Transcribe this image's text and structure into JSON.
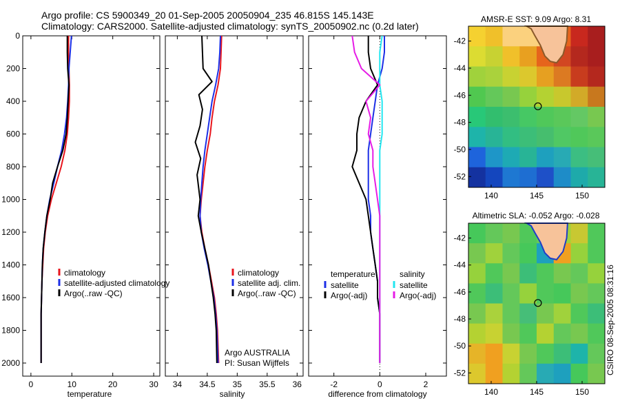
{
  "header": {
    "line1": "Argo profile: CS 5900349_20 01-Sep-2005 20050904_235 46.815S 145.143E",
    "line2": "Climatology: CARS2000. Satellite-adjusted climatology: synTS_20050902.nc (0.2d later)"
  },
  "credits": {
    "line1": "Argo AUSTRALIA",
    "line2": "PI: Susan Wijffels",
    "stamp": "CSIRO 08-Sep-2005 08:31:16"
  },
  "colors": {
    "climatology": "#e8141c",
    "satellite": "#1c2ee6",
    "argo": "#000000",
    "satellite_diff": "#22e6f0",
    "argo_sal_diff": "#e61ce6"
  },
  "chart_data": [
    {
      "id": "temperature",
      "type": "line",
      "xlabel": "temperature",
      "ylabel": "",
      "xlim": [
        -2,
        31.5
      ],
      "ylim": [
        2080,
        0
      ],
      "xticks": [
        "0",
        "10",
        "20",
        "30"
      ],
      "xtick_values": [
        0,
        10,
        20,
        30
      ],
      "yticks": [
        "0",
        "200",
        "400",
        "600",
        "800",
        "1000",
        "1200",
        "1400",
        "1600",
        "1800",
        "2000"
      ],
      "ytick_values": [
        0,
        200,
        400,
        600,
        800,
        1000,
        1200,
        1400,
        1600,
        1800,
        2000
      ],
      "legend": {
        "position": "lower-right",
        "items": [
          {
            "label": "climatology",
            "color_key": "climatology"
          },
          {
            "label": "satellite-adjusted climatology",
            "color_key": "satellite"
          },
          {
            "label": "Argo(..raw -QC)",
            "color_key": "argo"
          }
        ]
      },
      "series": [
        {
          "name": "climatology",
          "color_key": "climatology",
          "x": [
            9.2,
            9.2,
            9.3,
            9.4,
            9.4,
            9.2,
            8.9,
            8.3,
            7.4,
            6.2,
            5.0,
            4.1,
            3.5,
            3.1,
            2.9,
            2.7,
            2.6,
            2.5,
            2.5,
            2.5
          ],
          "y": [
            0,
            100,
            200,
            300,
            400,
            500,
            600,
            700,
            800,
            900,
            1000,
            1100,
            1200,
            1300,
            1400,
            1500,
            1600,
            1700,
            1800,
            2000
          ]
        },
        {
          "name": "satellite-adjusted climatology",
          "color_key": "satellite",
          "x": [
            9.9,
            9.6,
            9.3,
            9.2,
            9.0,
            8.7,
            8.2,
            7.5,
            6.5,
            5.6,
            4.6,
            3.9,
            3.4,
            3.0,
            2.8,
            2.7,
            2.6,
            2.5,
            2.5,
            2.5
          ],
          "y": [
            0,
            100,
            200,
            300,
            400,
            500,
            600,
            700,
            800,
            900,
            1000,
            1100,
            1200,
            1300,
            1400,
            1500,
            1600,
            1700,
            1800,
            2000
          ]
        },
        {
          "name": "Argo(..raw -QC)",
          "color_key": "argo",
          "x": [
            8.9,
            8.9,
            9.0,
            9.3,
            9.1,
            8.9,
            8.6,
            7.8,
            6.5,
            5.3,
            4.7,
            3.9,
            3.4,
            3.0,
            2.8,
            2.7,
            2.6,
            2.5,
            2.5,
            2.5
          ],
          "y": [
            0,
            100,
            200,
            300,
            400,
            500,
            600,
            700,
            800,
            900,
            1000,
            1100,
            1200,
            1300,
            1400,
            1500,
            1600,
            1700,
            1800,
            2000
          ]
        }
      ]
    },
    {
      "id": "salinity",
      "type": "line",
      "xlabel": "salinity",
      "ylabel": "",
      "xlim": [
        33.8,
        36.1
      ],
      "ylim": [
        2080,
        0
      ],
      "xticks": [
        "34",
        "34.5",
        "35",
        "35.5",
        "36"
      ],
      "xtick_values": [
        34,
        34.5,
        35,
        35.5,
        36
      ],
      "legend": {
        "position": "lower-right",
        "items": [
          {
            "label": "climatology",
            "color_key": "climatology"
          },
          {
            "label": "satellite adj. clim.",
            "color_key": "satellite"
          },
          {
            "label": "Argo(..raw -QC)",
            "color_key": "argo"
          }
        ]
      },
      "series": [
        {
          "name": "climatology",
          "color_key": "climatology",
          "x": [
            34.74,
            34.73,
            34.72,
            34.68,
            34.62,
            34.58,
            34.55,
            34.5,
            34.46,
            34.43,
            34.4,
            34.38,
            34.41,
            34.46,
            34.52,
            34.57,
            34.62,
            34.65,
            34.67,
            34.69
          ],
          "y": [
            0,
            100,
            200,
            300,
            400,
            500,
            600,
            700,
            800,
            900,
            1000,
            1100,
            1200,
            1300,
            1400,
            1500,
            1600,
            1700,
            1800,
            2000
          ]
        },
        {
          "name": "satellite adj. clim.",
          "color_key": "satellite",
          "x": [
            34.72,
            34.71,
            34.69,
            34.64,
            34.58,
            34.54,
            34.5,
            34.46,
            34.43,
            34.41,
            34.39,
            34.38,
            34.4,
            34.45,
            34.51,
            34.56,
            34.61,
            34.64,
            34.66,
            34.68
          ],
          "y": [
            0,
            100,
            200,
            300,
            400,
            500,
            600,
            700,
            800,
            900,
            1000,
            1100,
            1200,
            1300,
            1400,
            1500,
            1600,
            1700,
            1800,
            2000
          ]
        },
        {
          "name": "Argo(..raw -QC)",
          "color_key": "argo",
          "x": [
            34.41,
            34.42,
            34.43,
            34.58,
            34.36,
            34.42,
            34.38,
            34.3,
            34.39,
            34.33,
            34.38,
            34.35,
            34.4,
            34.46,
            34.52,
            34.56,
            34.6,
            34.63,
            34.65,
            34.66
          ],
          "y": [
            0,
            100,
            200,
            280,
            360,
            450,
            550,
            650,
            750,
            850,
            1000,
            1100,
            1200,
            1300,
            1400,
            1500,
            1600,
            1700,
            1800,
            2000
          ]
        }
      ]
    },
    {
      "id": "difference",
      "type": "line",
      "xlabel": "difference from climatology",
      "ylabel": "",
      "xlim": [
        -3.1,
        2.9
      ],
      "ylim": [
        2080,
        0
      ],
      "xticks": [
        "-2",
        "0",
        "2"
      ],
      "xtick_values": [
        -2,
        0,
        2
      ],
      "legend": {
        "position": "lower-center",
        "groups": [
          {
            "title": "temperature",
            "items": [
              {
                "label": "satellite",
                "color_key": "satellite"
              },
              {
                "label": "Argo(-adj)",
                "color_key": "argo"
              }
            ]
          },
          {
            "title": "salinity",
            "items": [
              {
                "label": "satellite",
                "color_key": "satellite_diff"
              },
              {
                "label": "Argo(-adj)",
                "color_key": "argo_sal_diff"
              }
            ]
          }
        ]
      },
      "series": [
        {
          "name": "temperature satellite",
          "color_key": "satellite",
          "x": [
            0.2,
            0.2,
            0.1,
            -0.1,
            -0.2,
            -0.3,
            -0.4,
            -0.5,
            -0.5,
            -0.5,
            -0.5,
            -0.4,
            -0.4,
            -0.3,
            -0.2,
            -0.1,
            -0.1,
            0.0,
            0.0,
            0.0
          ],
          "y": [
            0,
            100,
            200,
            300,
            400,
            500,
            600,
            700,
            800,
            900,
            1000,
            1100,
            1200,
            1300,
            1400,
            1500,
            1600,
            1700,
            1800,
            2000
          ]
        },
        {
          "name": "temperature Argo(-adj)",
          "color_key": "argo",
          "x": [
            -0.5,
            -0.5,
            -0.4,
            -0.1,
            -0.6,
            -0.9,
            -1.0,
            -1.0,
            -1.2,
            -0.9,
            -0.6,
            -0.5,
            -0.4,
            -0.3,
            -0.2,
            -0.1,
            -0.1,
            0.0,
            0.0,
            0.0
          ],
          "y": [
            0,
            100,
            200,
            300,
            400,
            500,
            600,
            700,
            800,
            900,
            1000,
            1100,
            1200,
            1300,
            1400,
            1500,
            1600,
            1700,
            1800,
            2000
          ]
        },
        {
          "name": "salinity satellite",
          "color_key": "satellite_diff",
          "x": [
            0.1,
            0.0,
            0.0,
            0.0,
            0.1,
            0.1,
            0.1,
            0.0,
            0.0,
            0.0,
            0.0,
            0.0,
            0.0,
            0.0,
            0.0,
            0.0,
            0.0,
            0.0,
            0.0,
            0.0
          ],
          "y": [
            0,
            100,
            200,
            300,
            400,
            500,
            600,
            700,
            800,
            900,
            1000,
            1100,
            1200,
            1300,
            1400,
            1500,
            1600,
            1700,
            1800,
            2000
          ]
        },
        {
          "name": "salinity Argo(-adj)",
          "color_key": "argo_sal_diff",
          "x": [
            -1.2,
            -1.1,
            -0.8,
            0.0,
            -0.6,
            -0.4,
            -0.5,
            -0.3,
            -0.3,
            -0.2,
            -0.1,
            0.0,
            0.0,
            0.0,
            0.0,
            0.0,
            0.0,
            0.0,
            0.0,
            0.0
          ],
          "y": [
            0,
            100,
            200,
            300,
            400,
            500,
            600,
            700,
            800,
            900,
            1000,
            1100,
            1200,
            1300,
            1400,
            1500,
            1600,
            1700,
            1800,
            2000
          ]
        }
      ]
    },
    {
      "id": "sst_map",
      "type": "heatmap",
      "title": "AMSR-E SST: 9.09 Argo: 8.31",
      "xlim": [
        137.5,
        152.5
      ],
      "ylim": [
        -52.8,
        -40.9
      ],
      "xticks": [
        "140",
        "145",
        "150"
      ],
      "xtick_values": [
        140,
        145,
        150
      ],
      "yticks": [
        "-42",
        "-44",
        "-46",
        "-48",
        "-50",
        "-52"
      ],
      "ytick_values": [
        -42,
        -44,
        -46,
        -48,
        -50,
        -52
      ],
      "marker": {
        "lon": 145.143,
        "lat": -46.815
      },
      "rows_north_to_south": [
        "#f5d130",
        "#f0c02a",
        "#fbd17e",
        "#fbd17e",
        "#fbd17e",
        "#e6641c",
        "#c8281e",
        "#a81e1e",
        "#dcdc32",
        "#c8d232",
        "#f0c02a",
        "#e8a020",
        "#e6641c",
        "#d24622",
        "#b4281e",
        "#a81e1e",
        "#a0d23c",
        "#aad23c",
        "#c8d232",
        "#dcc82d",
        "#e6a021",
        "#dc7a22",
        "#c83c1e",
        "#b4281e",
        "#50c850",
        "#64c85a",
        "#78c850",
        "#96d23c",
        "#b4d232",
        "#c8c82d",
        "#d2aa28",
        "#c8781e",
        "#28c878",
        "#32be6e",
        "#3cbe6e",
        "#46c864",
        "#50c85a",
        "#5ac85a",
        "#64c864",
        "#78c850",
        "#1eb4aa",
        "#28b496",
        "#32be82",
        "#3cbe78",
        "#46be6e",
        "#50c864",
        "#50c85a",
        "#5ac85a",
        "#1e64dc",
        "#1e96c8",
        "#1eaab4",
        "#28b496",
        "#1ea0be",
        "#28aab4",
        "#3cbe82",
        "#46be78",
        "#1432a0",
        "#1446be",
        "#1e78d2",
        "#1e6ed2",
        "#1e50c8",
        "#1e8cc8",
        "#1eaaaa",
        "#28b496"
      ]
    },
    {
      "id": "sla_map",
      "type": "heatmap",
      "title": "Altimetric SLA: -0.052 Argo: -0.028",
      "xlim": [
        137.5,
        152.5
      ],
      "ylim": [
        -52.8,
        -40.9
      ],
      "xticks": [
        "140",
        "145",
        "150"
      ],
      "xtick_values": [
        140,
        145,
        150
      ],
      "yticks": [
        "-42",
        "-44",
        "-46",
        "-48",
        "-50",
        "-52"
      ],
      "ytick_values": [
        -42,
        -44,
        -46,
        -48,
        -50,
        -52
      ],
      "marker": {
        "lon": 145.143,
        "lat": -46.815
      },
      "rows_north_to_south": [
        "#46c85a",
        "#64c85a",
        "#78c850",
        "#50c85a",
        "#64c85a",
        "#a0d23c",
        "#c8c832",
        "#50c85a",
        "#78c850",
        "#a0d23c",
        "#64c85a",
        "#46c85a",
        "#1ea0be",
        "#f0a020",
        "#96d23c",
        "#50c85a",
        "#96d23c",
        "#50c85a",
        "#78c850",
        "#3cbe78",
        "#50c85a",
        "#78c850",
        "#64c85a",
        "#96d23c",
        "#50c85a",
        "#3cbe78",
        "#64c85a",
        "#96d23c",
        "#50c85a",
        "#46c85a",
        "#78c850",
        "#64c85a",
        "#78c850",
        "#aad23c",
        "#64c85a",
        "#46be78",
        "#78c850",
        "#a0d23c",
        "#50c85a",
        "#3cbe78",
        "#b4d232",
        "#c8d232",
        "#78c850",
        "#50c85a",
        "#b4d232",
        "#64c85a",
        "#78c850",
        "#50c85a",
        "#e6b428",
        "#f0a020",
        "#c8d232",
        "#78c850",
        "#50c85a",
        "#3cbe78",
        "#1eb4aa",
        "#64c85a",
        "#dcc82d",
        "#f0a020",
        "#b4d232",
        "#64c85a",
        "#28aab4",
        "#1ea0be",
        "#46c85a",
        "#78c850"
      ]
    }
  ]
}
